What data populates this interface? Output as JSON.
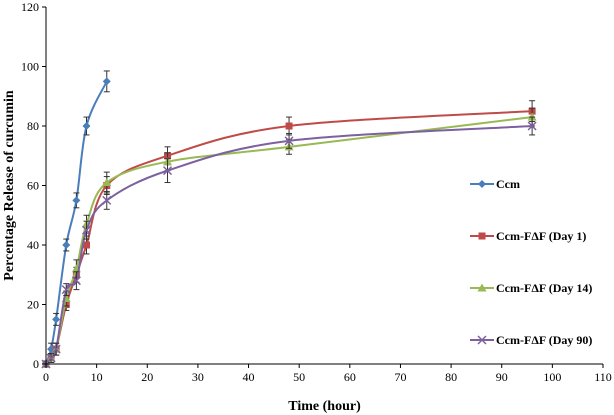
{
  "chart_data": {
    "type": "line",
    "xlabel": "Time (hour)",
    "ylabel": "Percentage Release of curcumin",
    "xlim": [
      0,
      110
    ],
    "ylim": [
      0,
      120
    ],
    "xticks": [
      "0",
      "10",
      "20",
      "30",
      "40",
      "50",
      "60",
      "70",
      "80",
      "90",
      "100",
      "110"
    ],
    "yticks": [
      "0",
      "20",
      "40",
      "60",
      "80",
      "100",
      "120"
    ],
    "grid": false,
    "legend_position": "right",
    "series": [
      {
        "name": "Ccm",
        "color": "#4a7ebb",
        "marker": "diamond",
        "x": [
          0,
          1,
          2,
          4,
          6,
          8,
          12
        ],
        "values": [
          0,
          5,
          15,
          40,
          55,
          80,
          95
        ],
        "errors": [
          1,
          2,
          2,
          2,
          2.5,
          3,
          3.5
        ]
      },
      {
        "name": "Ccm-FΔF (Day 1)",
        "color": "#be4b48",
        "marker": "square",
        "x": [
          0,
          1,
          2,
          4,
          6,
          8,
          12,
          24,
          48,
          96
        ],
        "values": [
          0,
          2,
          5,
          20,
          30,
          40,
          60,
          70,
          80,
          85
        ],
        "errors": [
          1,
          1.5,
          2,
          2,
          2.5,
          3,
          3,
          3,
          3,
          3.5
        ]
      },
      {
        "name": "Ccm-FΔF (Day 14)",
        "color": "#98b954",
        "marker": "triangle",
        "x": [
          0,
          1,
          2,
          4,
          6,
          8,
          12,
          24,
          48,
          96
        ],
        "values": [
          0,
          2,
          5,
          22,
          32,
          47,
          61,
          68,
          73,
          83
        ],
        "errors": [
          1,
          1.5,
          2,
          2.5,
          3,
          3,
          3.5,
          3,
          2.5,
          3
        ]
      },
      {
        "name": "Ccm-FΔF (Day 90)",
        "color": "#7d60a0",
        "marker": "x",
        "x": [
          0,
          1,
          2,
          4,
          6,
          8,
          12,
          24,
          48,
          96
        ],
        "values": [
          0,
          2,
          5,
          25,
          28,
          45,
          55,
          65,
          75,
          80
        ],
        "errors": [
          1,
          1.5,
          2,
          2,
          3,
          3,
          3,
          4,
          2.5,
          3
        ]
      }
    ]
  }
}
